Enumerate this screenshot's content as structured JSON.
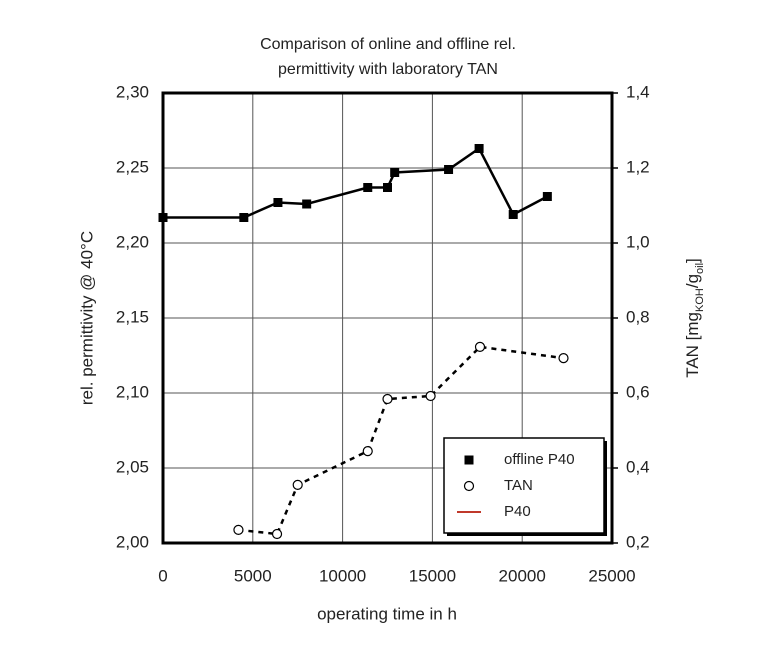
{
  "chart_data": {
    "type": "line",
    "title": [
      "Comparison of online and offline rel.",
      "permittivity with laboratory TAN"
    ],
    "xlabel": "operating time in h",
    "ylabel": "rel. permittivity @ 40°C",
    "y2label": [
      "TAN [mg",
      "KOH",
      "/g",
      "oil",
      "]"
    ],
    "xlim": [
      0,
      25000
    ],
    "xticks": [
      0,
      5000,
      10000,
      15000,
      20000,
      25000
    ],
    "ylim": [
      2.0,
      2.3
    ],
    "yticks": [
      {
        "value": 2.0,
        "label": "2,00"
      },
      {
        "value": 2.05,
        "label": "2,05"
      },
      {
        "value": 2.1,
        "label": "2,10"
      },
      {
        "value": 2.15,
        "label": "2,15"
      },
      {
        "value": 2.2,
        "label": "2,20"
      },
      {
        "value": 2.25,
        "label": "2,25"
      },
      {
        "value": 2.3,
        "label": "2,30"
      }
    ],
    "y2lim": [
      0.2,
      1.4
    ],
    "y2ticks": [
      {
        "value": 0.2,
        "label": "0,2"
      },
      {
        "value": 0.4,
        "label": "0,4"
      },
      {
        "value": 0.6,
        "label": "0,6"
      },
      {
        "value": 0.8,
        "label": "0,8"
      },
      {
        "value": 1.0,
        "label": "1,0"
      },
      {
        "value": 1.2,
        "label": "1,2"
      },
      {
        "value": 1.4,
        "label": "1,4"
      }
    ],
    "grid": true,
    "legend": "lower right",
    "series": [
      {
        "name": "offline P40",
        "color": "#000000",
        "marker": "square",
        "line_style": "solid",
        "x": [
          0,
          4500,
          6400,
          8000,
          11400,
          12500,
          12900,
          15900,
          17600,
          19500,
          21400
        ],
        "values": [
          2.217,
          2.217,
          2.227,
          2.226,
          2.237,
          2.237,
          2.247,
          2.249,
          2.263,
          2.219,
          2.231
        ]
      },
      {
        "name": "TAN",
        "color": "#000000",
        "marker": "circle",
        "line_style": "dashed",
        "axis": "y2",
        "x": [
          4200,
          6350,
          7500,
          11400,
          12500,
          14900,
          17650,
          22300
        ],
        "values": [
          0.235,
          0.224,
          0.355,
          0.445,
          0.584,
          0.592,
          0.723,
          0.693
        ]
      },
      {
        "name": "P40",
        "color": "#c0392b",
        "marker": "none",
        "line_style": "solid",
        "x": [],
        "values": []
      }
    ]
  }
}
